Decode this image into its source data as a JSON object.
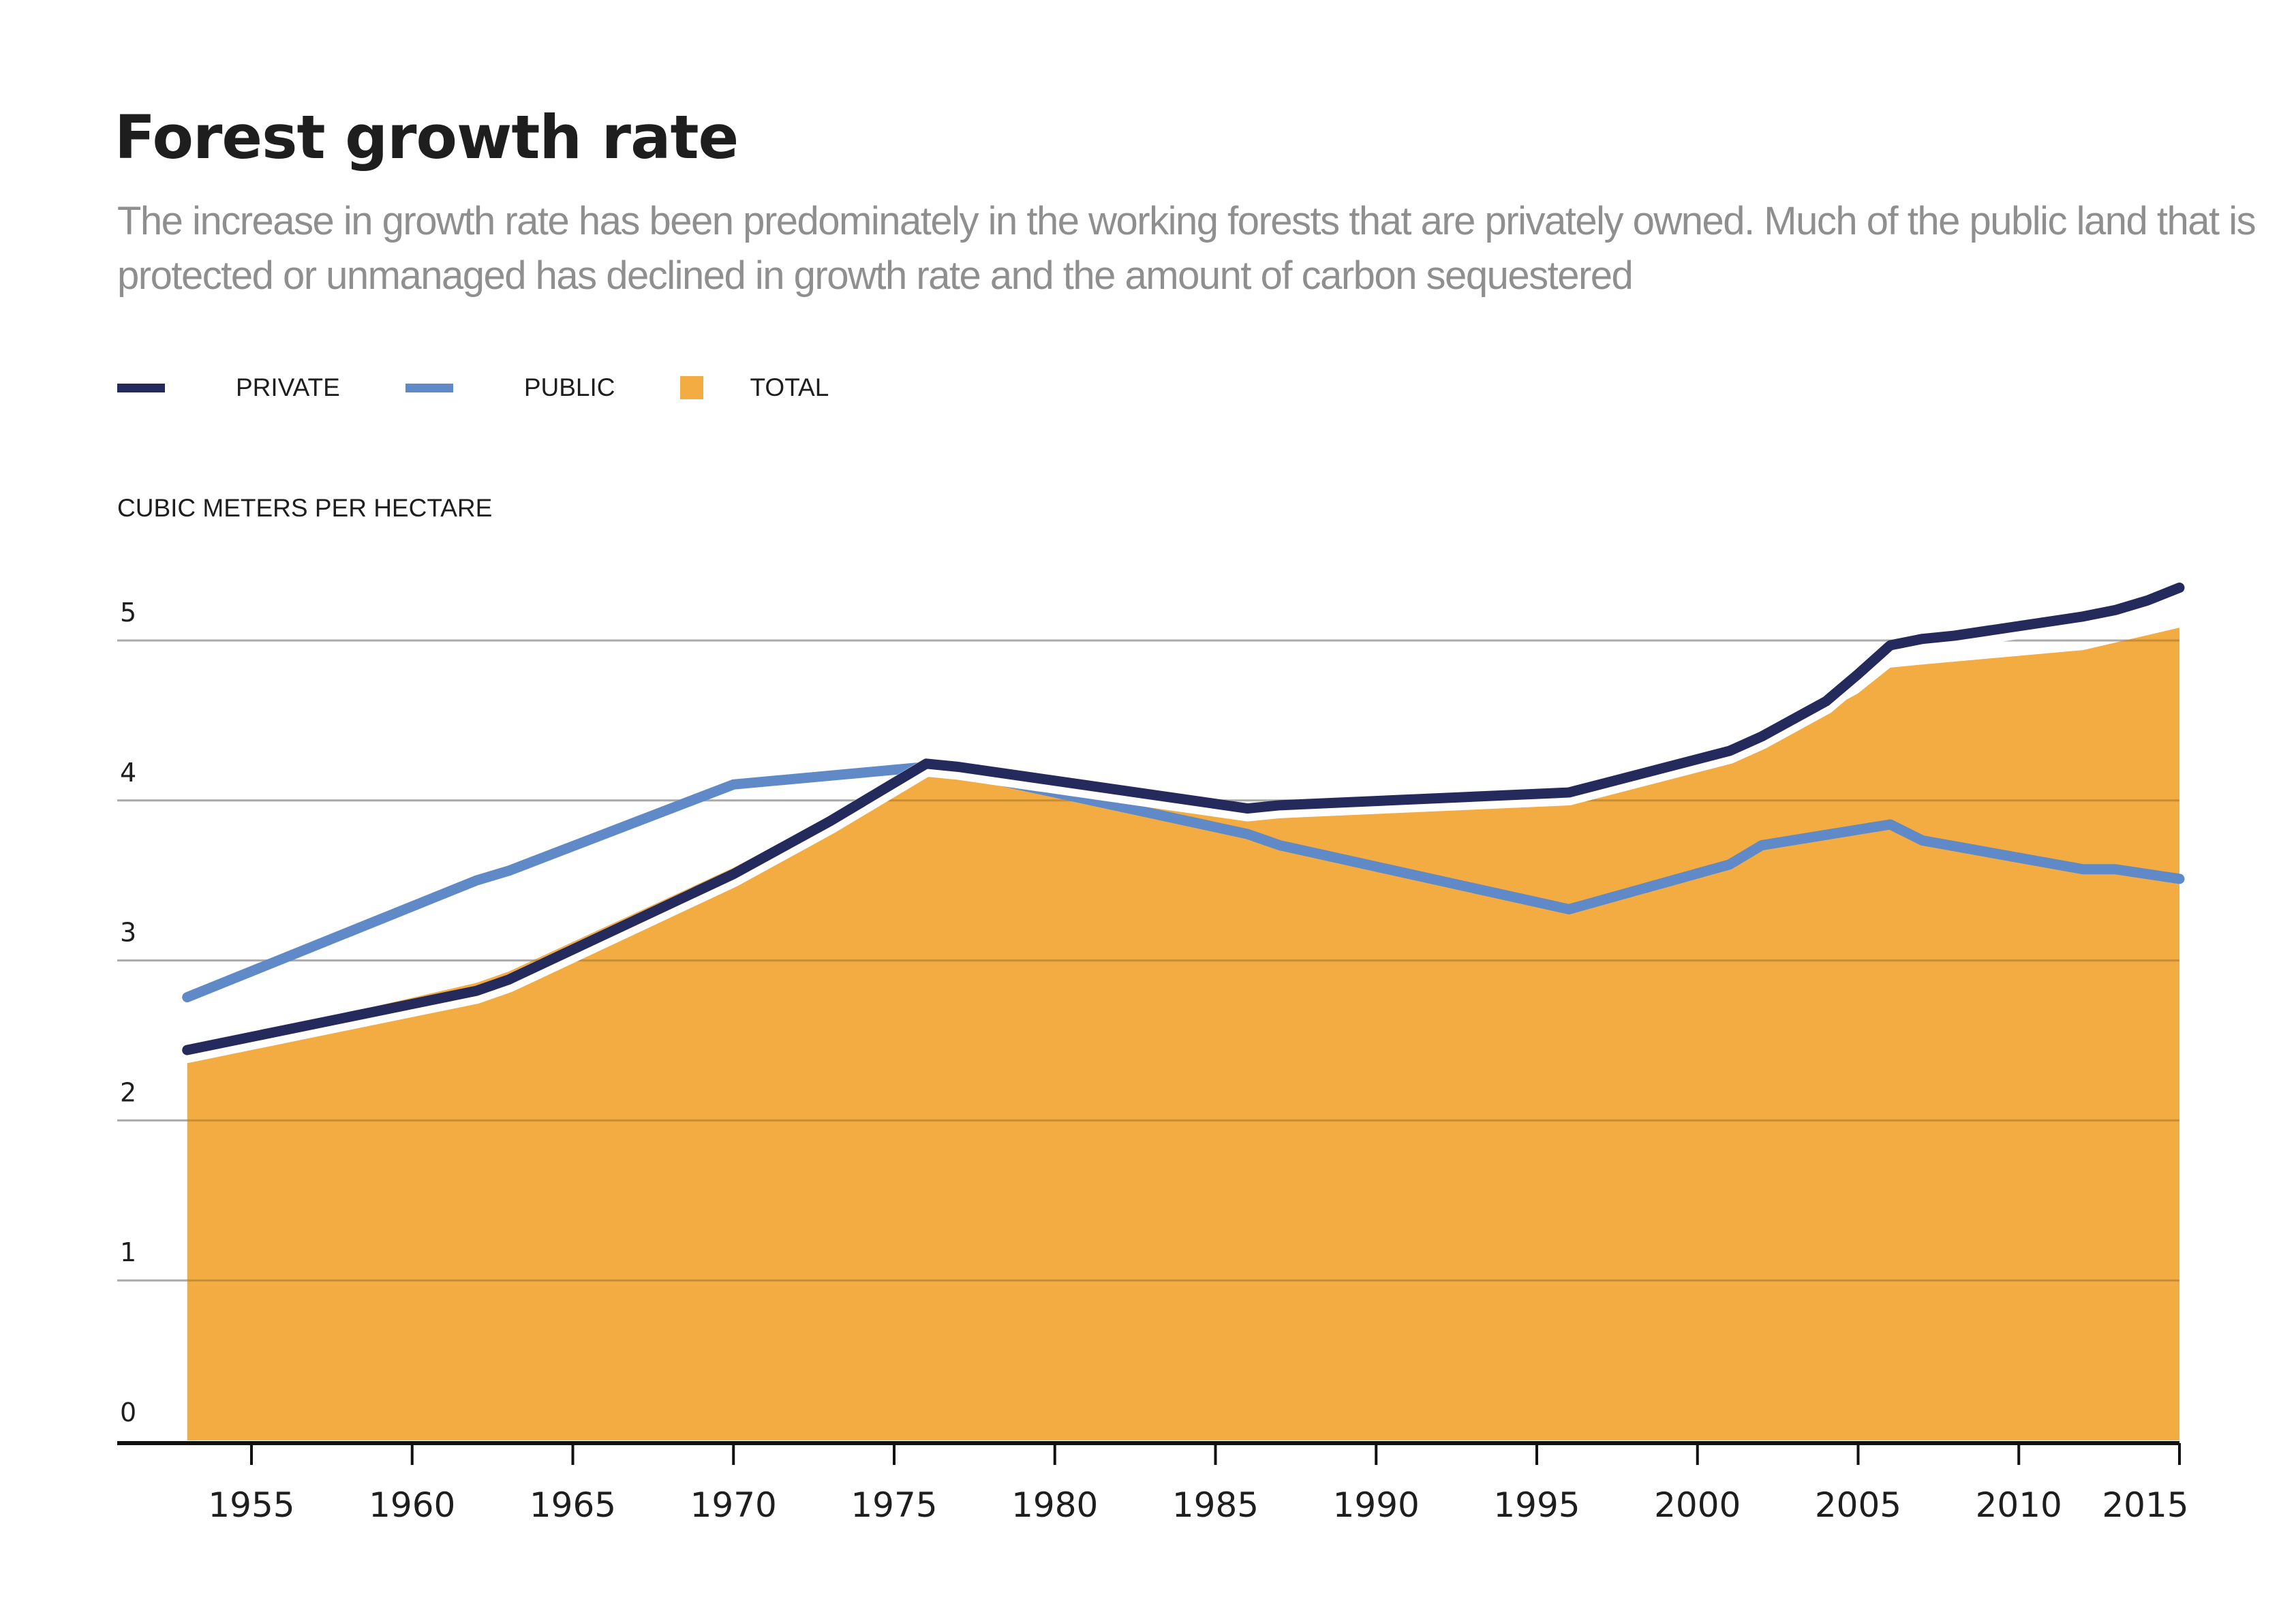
{
  "title": "Forest growth rate",
  "subtitle": "The increase in growth rate has been predominately in the working forests that are privately owned. Much of the public land that is protected or unmanaged has declined in growth rate and the amount of carbon sequestered",
  "legend": [
    {
      "label": "PRIVATE",
      "color": "#242a5c",
      "shape": "line"
    },
    {
      "label": "PUBLIC",
      "color": "#5f8ac7",
      "shape": "line"
    },
    {
      "label": "TOTAL",
      "color": "#f2ac42",
      "shape": "box"
    }
  ],
  "chart_data": {
    "type": "line",
    "title": "Forest growth rate",
    "xlabel": "",
    "ylabel": "CUBIC METERS PER HECTARE",
    "xlim": [
      1953,
      2015
    ],
    "ylim": [
      0,
      5
    ],
    "x_ticks": [
      1955,
      1960,
      1965,
      1970,
      1975,
      1980,
      1985,
      1990,
      1995,
      2000,
      2005,
      2010,
      2015
    ],
    "y_ticks": [
      0,
      1,
      2,
      3,
      4,
      5
    ],
    "grid": true,
    "legend_position": "top-left",
    "series": [
      {
        "name": "PRIVATE",
        "type": "line",
        "color": "#242a5c",
        "points": [
          [
            1953,
            2.44
          ],
          [
            1962,
            2.81
          ],
          [
            1963,
            2.88
          ],
          [
            1970,
            3.54
          ],
          [
            1973,
            3.87
          ],
          [
            1976,
            4.23
          ],
          [
            1977,
            4.21
          ],
          [
            1986,
            3.95
          ],
          [
            1987,
            3.97
          ],
          [
            1996,
            4.05
          ],
          [
            2001,
            4.31
          ],
          [
            2002,
            4.4
          ],
          [
            2004,
            4.62
          ],
          [
            2005,
            4.79
          ],
          [
            2006,
            4.97
          ],
          [
            2007,
            5.01
          ],
          [
            2008,
            5.03
          ],
          [
            2012,
            5.15
          ],
          [
            2013,
            5.19
          ],
          [
            2014,
            5.25
          ],
          [
            2015,
            5.33
          ]
        ]
      },
      {
        "name": "PUBLIC",
        "type": "line",
        "color": "#5f8ac7",
        "points": [
          [
            1953,
            2.77
          ],
          [
            1962,
            3.5
          ],
          [
            1963,
            3.56
          ],
          [
            1970,
            4.1
          ],
          [
            1976,
            4.21
          ],
          [
            1977,
            4.18
          ],
          [
            1986,
            3.79
          ],
          [
            1987,
            3.72
          ],
          [
            1996,
            3.32
          ],
          [
            2001,
            3.6
          ],
          [
            2002,
            3.72
          ],
          [
            2006,
            3.85
          ],
          [
            2007,
            3.75
          ],
          [
            2012,
            3.57
          ],
          [
            2013,
            3.57
          ],
          [
            2015,
            3.51
          ]
        ]
      },
      {
        "name": "TOTAL",
        "type": "area",
        "color": "#f2ac42",
        "points": [
          [
            1953,
            2.44
          ],
          [
            1962,
            2.86
          ],
          [
            1963,
            2.93
          ],
          [
            1970,
            3.58
          ],
          [
            1976,
            4.22
          ],
          [
            1977,
            4.2
          ],
          [
            1986,
            3.9
          ],
          [
            1996,
            3.99
          ],
          [
            2001,
            4.25
          ],
          [
            2003,
            4.45
          ],
          [
            2005,
            4.67
          ],
          [
            2006,
            4.83
          ],
          [
            2007,
            4.85
          ],
          [
            2012,
            4.94
          ],
          [
            2015,
            5.08
          ]
        ]
      }
    ]
  }
}
